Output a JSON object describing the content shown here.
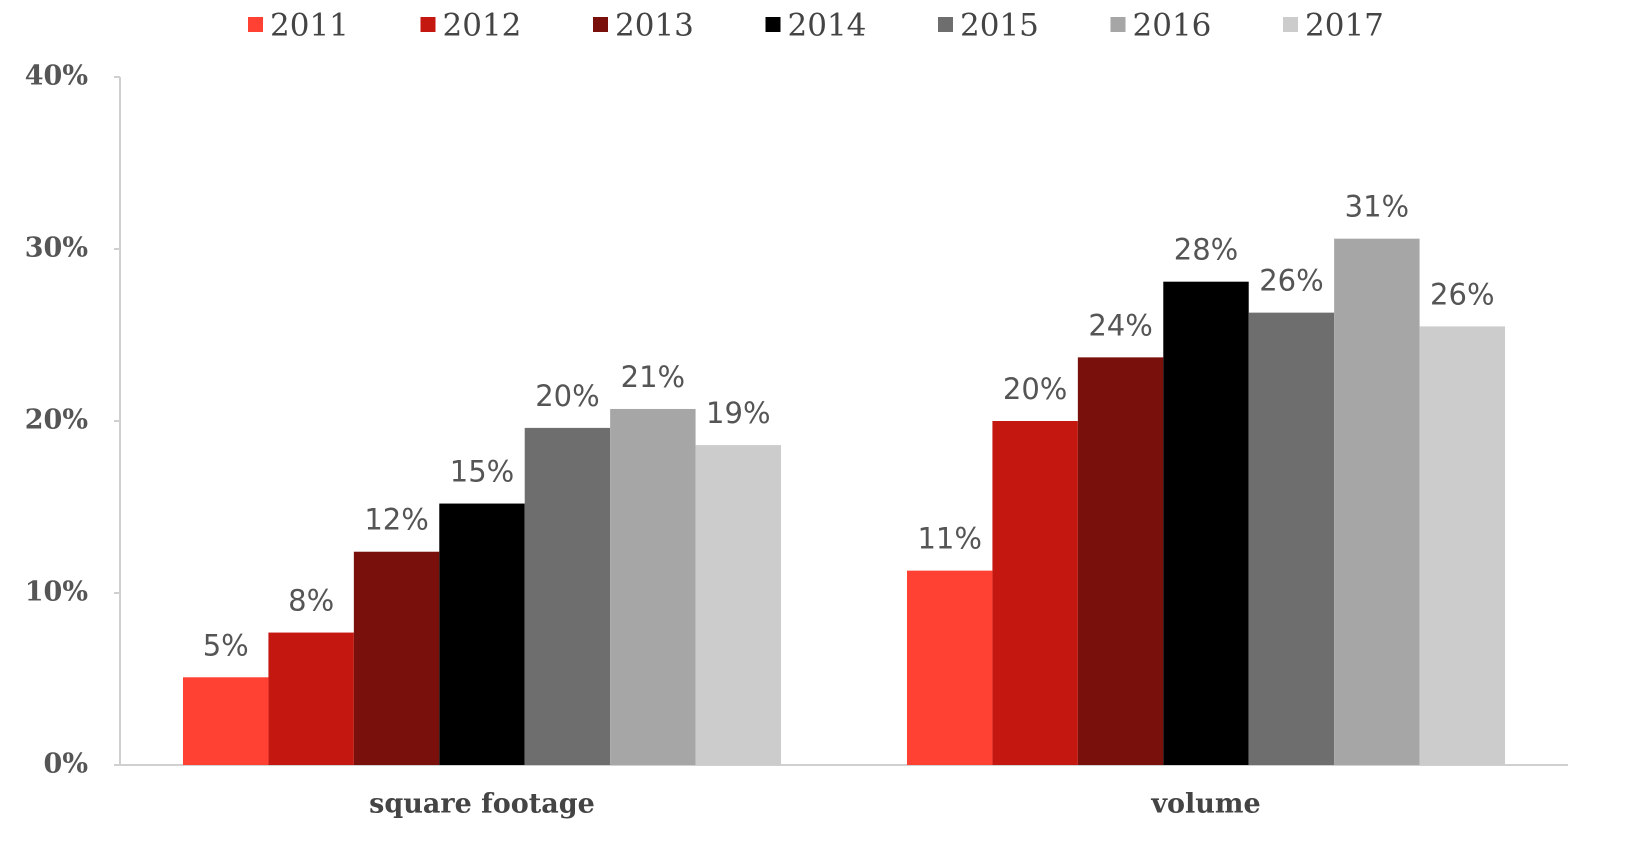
{
  "chart_data": {
    "type": "bar",
    "categories": [
      "square footage",
      "volume"
    ],
    "series": [
      {
        "name": "2011",
        "color": "#fe4133",
        "values": [
          5.1,
          11.3
        ],
        "value_labels": [
          "5%",
          "11%"
        ]
      },
      {
        "name": "2012",
        "color": "#c4170f",
        "values": [
          7.7,
          20.0
        ],
        "value_labels": [
          "8%",
          "20%"
        ]
      },
      {
        "name": "2013",
        "color": "#7a100b",
        "values": [
          12.4,
          23.7
        ],
        "value_labels": [
          "12%",
          "24%"
        ]
      },
      {
        "name": "2014",
        "color": "#000000",
        "values": [
          15.2,
          28.1
        ],
        "value_labels": [
          "15%",
          "28%"
        ]
      },
      {
        "name": "2015",
        "color": "#6e6e6e",
        "values": [
          19.6,
          26.3
        ],
        "value_labels": [
          "20%",
          "26%"
        ]
      },
      {
        "name": "2016",
        "color": "#a6a6a6",
        "values": [
          20.7,
          30.6
        ],
        "value_labels": [
          "21%",
          "31%"
        ]
      },
      {
        "name": "2017",
        "color": "#cccccc",
        "values": [
          18.6,
          25.5
        ],
        "value_labels": [
          "19%",
          "26%"
        ]
      }
    ],
    "ylim": [
      0,
      40
    ],
    "yticks": [
      {
        "value": 0,
        "label": "0%"
      },
      {
        "value": 10,
        "label": "10%"
      },
      {
        "value": 20,
        "label": "20%"
      },
      {
        "value": 30,
        "label": "30%"
      },
      {
        "value": 40,
        "label": "40%"
      }
    ],
    "legend": "top",
    "grid": false
  }
}
